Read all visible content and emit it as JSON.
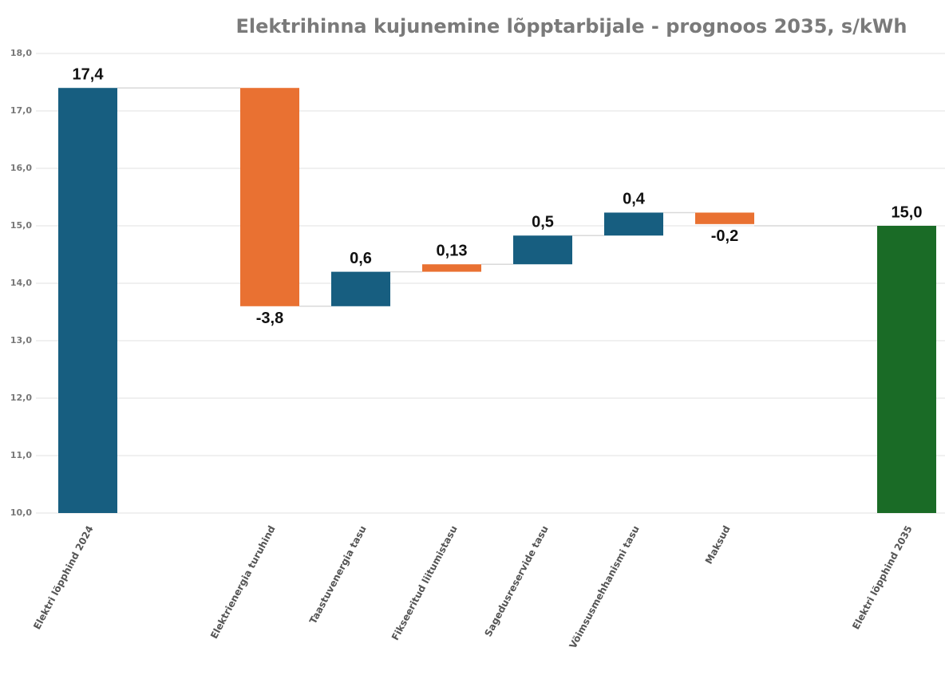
{
  "chart_data": {
    "type": "waterfall",
    "title": "Elektrihinna kujunemine lõpptarbijale - prognoos 2035, s/kWh",
    "categories": [
      "Elektri lõpphind 2024",
      null,
      "Elektrienergia turuhind",
      "Taastuvenergia tasu",
      "Fikseeritud liitumistasu",
      "Sagedusreservide tasu",
      "Võimsusmehhanismi tasu",
      "Maksud",
      null,
      "Elektri lõpphind 2035"
    ],
    "values": [
      17.4,
      null,
      -3.8,
      0.6,
      0.13,
      0.5,
      0.4,
      -0.2,
      null,
      15.0
    ],
    "value_labels": [
      "17,4",
      null,
      "-3,8",
      "0,6",
      "0,13",
      "0,5",
      "0,4",
      "-0,2",
      null,
      "15,0"
    ],
    "measures": [
      "total",
      null,
      "relative",
      "relative",
      "relative",
      "relative",
      "relative",
      "relative",
      null,
      "total"
    ],
    "colors": [
      "#175e80",
      null,
      "#e97132",
      "#175e80",
      "#e97132",
      "#175e80",
      "#175e80",
      "#e97132",
      null,
      "#1a6b26"
    ],
    "ylim": [
      10,
      18
    ],
    "yticks": [
      {
        "value": 10,
        "label": "10,0"
      },
      {
        "value": 11,
        "label": "11,0"
      },
      {
        "value": 12,
        "label": "12,0"
      },
      {
        "value": 13,
        "label": "13,0"
      },
      {
        "value": 14,
        "label": "14,0"
      },
      {
        "value": 15,
        "label": "15,0"
      },
      {
        "value": 16,
        "label": "16,0"
      },
      {
        "value": 17,
        "label": "17,0"
      },
      {
        "value": 18,
        "label": "18,0"
      }
    ],
    "grid": true
  }
}
